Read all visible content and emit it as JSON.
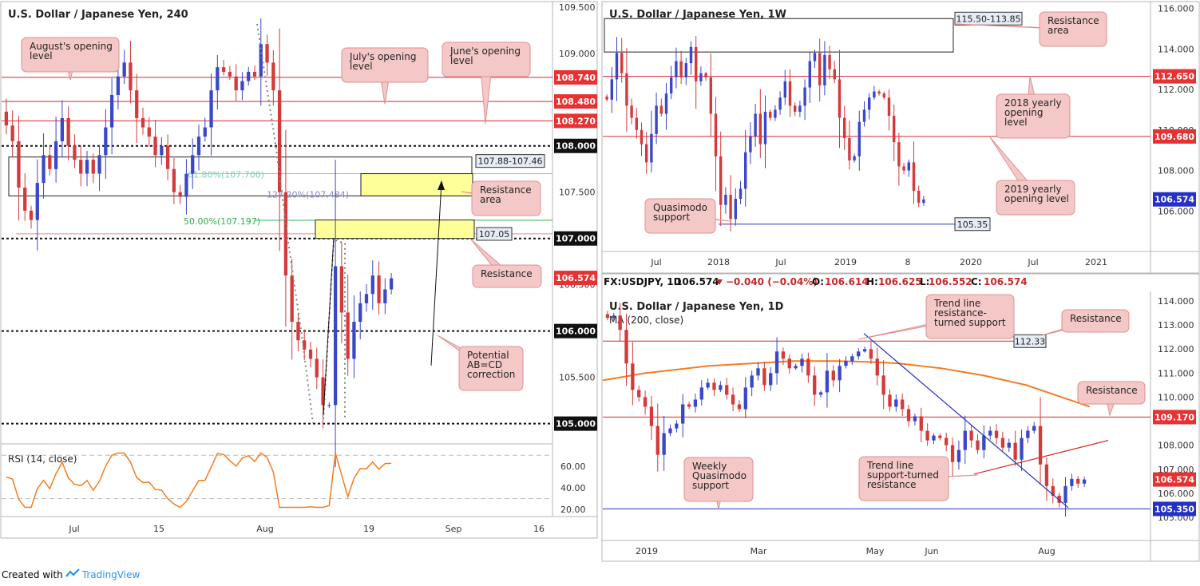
{
  "colors": {
    "bull": "#3a47c8",
    "bear": "#d43a3a",
    "red_line": "#d42a2a",
    "blue_line": "#2430c8",
    "callout_fill": "#f5c8c8",
    "callout_stroke": "#e08f8f",
    "yellow": "#ffff99",
    "orange": "#f57c1f",
    "price_tag": "#e83232"
  },
  "footer": {
    "created_with": "Created with",
    "brand": "TradingView"
  },
  "chart_data": [
    {
      "id": "h4",
      "type": "candlestick",
      "title": "U.S. Dollar / Japanese Yen, 240",
      "ylim": [
        104.85,
        109.55
      ],
      "yticks": [
        "109.500",
        "109.000",
        "108.500",
        "108.000",
        "107.500",
        "107.000",
        "106.500",
        "106.000",
        "105.500",
        "105.000"
      ],
      "xticks": [
        "Jul",
        "15",
        "Aug",
        "19",
        "Sep",
        "16"
      ],
      "price_tags": [
        {
          "label": "108.740",
          "value": 108.74,
          "style": "red"
        },
        {
          "label": "108.480",
          "value": 108.48,
          "style": "red"
        },
        {
          "label": "108.270",
          "value": 108.27,
          "style": "red"
        },
        {
          "label": "108.000",
          "value": 108.0,
          "style": "black"
        },
        {
          "label": "107.000",
          "value": 107.0,
          "style": "black"
        },
        {
          "label": "106.574",
          "value": 106.574,
          "style": "red"
        },
        {
          "label": "106.000",
          "value": 106.0,
          "style": "black"
        },
        {
          "label": "105.000",
          "value": 105.0,
          "style": "black"
        }
      ],
      "levels": [
        {
          "value": 108.74,
          "kind": "red"
        },
        {
          "value": 108.48,
          "kind": "red"
        },
        {
          "value": 108.27,
          "kind": "red"
        },
        {
          "value": 108.0,
          "kind": "dashed"
        },
        {
          "value": 107.0,
          "kind": "dashed"
        },
        {
          "value": 106.0,
          "kind": "dashed"
        },
        {
          "value": 105.0,
          "kind": "dashed"
        }
      ],
      "zone_label": "107.88-107.46",
      "zone_value_tag": "107.05",
      "fib_labels": [
        "61.80%(107.700)",
        "127.20%(107.484)",
        "50.00%(107.197)"
      ],
      "callouts": [
        "August's opening level",
        "July's opening level",
        "June's opening level",
        "Resistance area",
        "Resistance",
        "Potential AB=CD correction"
      ],
      "series_close": [
        108.22,
        108.05,
        107.55,
        107.3,
        107.2,
        107.6,
        107.9,
        107.75,
        108.05,
        108.3,
        108.0,
        107.85,
        107.7,
        107.85,
        107.7,
        107.9,
        108.2,
        108.55,
        108.75,
        108.9,
        108.6,
        108.3,
        108.2,
        108.1,
        107.9,
        108.0,
        107.75,
        107.5,
        107.45,
        107.7,
        107.9,
        108.1,
        108.2,
        108.6,
        108.85,
        108.8,
        108.75,
        108.6,
        108.7,
        108.8,
        108.75,
        109.1,
        108.9,
        108.6,
        107.5,
        106.6,
        106.1,
        105.9,
        105.8,
        105.7,
        105.5,
        105.2,
        105.2,
        106.7,
        106.2,
        105.7,
        106.1,
        106.3,
        106.4,
        106.6,
        106.3,
        106.45,
        106.57
      ],
      "rsi": {
        "label": "RSI (14, close)",
        "yticks": [
          "60.00",
          "40.00",
          "20.00"
        ],
        "ylim": [
          15,
          79
        ]
      }
    },
    {
      "id": "w1",
      "type": "candlestick",
      "title": "U.S. Dollar / Japanese Yen, 1W",
      "ylim": [
        104.0,
        116.3
      ],
      "yticks": [
        "116.000",
        "114.000",
        "112.000",
        "110.000",
        "108.000",
        "106.000"
      ],
      "xticks": [
        "Jul",
        "2018",
        "Jul",
        "2019",
        "8",
        "2020",
        "Jul",
        "2021"
      ],
      "price_tags": [
        {
          "label": "112.650",
          "value": 112.65,
          "style": "red"
        },
        {
          "label": "109.680",
          "value": 109.68,
          "style": "red"
        },
        {
          "label": "106.574",
          "value": 106.574,
          "style": "blue"
        }
      ],
      "zone_label": "115.50-113.85",
      "support_label": "105.35",
      "callouts": [
        "Resistance area",
        "2018 yearly opening level",
        "2019 yearly opening level",
        "Quasimodo support"
      ],
      "series_close": [
        111.5,
        112.5,
        113.8,
        112.8,
        111.2,
        110.6,
        110.0,
        109.3,
        108.4,
        109.8,
        111.2,
        110.8,
        111.8,
        112.6,
        113.4,
        112.6,
        113.3,
        114.1,
        112.4,
        112.8,
        112.6,
        110.8,
        108.7,
        106.3,
        106.8,
        105.6,
        106.6,
        107.1,
        108.9,
        109.7,
        110.8,
        109.3,
        110.9,
        110.6,
        111.0,
        111.6,
        112.4,
        111.2,
        110.9,
        111.2,
        112.1,
        113.4,
        113.8,
        112.2,
        113.7,
        113.0,
        112.5,
        110.6,
        109.6,
        108.5,
        108.7,
        110.4,
        111.0,
        111.6,
        111.9,
        111.8,
        111.6,
        110.7,
        109.4,
        108.2,
        108.0,
        108.4,
        107.0,
        106.4,
        106.574
      ]
    },
    {
      "id": "d1",
      "type": "candlestick",
      "title": "U.S. Dollar / Japanese Yen, 1D",
      "subtitle": "MA (200, close)",
      "header": {
        "symbol": "FX:USDJPY, 1D",
        "last": "106.574",
        "change": "−0.040 (−0.04%)",
        "o_lbl": "O:",
        "o": "106.614",
        "h_lbl": "H:",
        "h": "106.625",
        "l_lbl": "L:",
        "l": "106.552",
        "c_lbl": "C:",
        "c": "106.574"
      },
      "ylim": [
        104.6,
        114.3
      ],
      "yticks": [
        "114.000",
        "113.000",
        "112.000",
        "111.000",
        "110.000",
        "109.000",
        "108.000",
        "107.000",
        "106.000",
        "105.000"
      ],
      "xticks": [
        "2019",
        "Mar",
        "May",
        "Jun",
        "Aug"
      ],
      "price_tags": [
        {
          "label": "109.170",
          "value": 109.17,
          "style": "red"
        },
        {
          "label": "106.574",
          "value": 106.574,
          "style": "red"
        },
        {
          "label": "105.350",
          "value": 105.35,
          "style": "blue"
        }
      ],
      "resistance_label": "112.33",
      "callouts": [
        "Trend line resistance-turned support",
        "Resistance",
        "Resistance",
        "Weekly Quasimodo support",
        "Trend line support-turned resistance"
      ],
      "series_close": [
        113.3,
        113.4,
        112.8,
        111.4,
        110.3,
        110.0,
        109.6,
        108.8,
        107.6,
        108.5,
        108.7,
        108.9,
        109.7,
        109.6,
        109.9,
        110.4,
        110.6,
        110.3,
        110.5,
        110.1,
        109.7,
        109.5,
        110.4,
        110.9,
        111.2,
        110.5,
        111.0,
        111.9,
        111.6,
        111.2,
        111.3,
        111.6,
        110.9,
        110.1,
        110.2,
        111.1,
        110.7,
        111.3,
        111.5,
        111.7,
        111.9,
        112.0,
        111.6,
        110.9,
        110.1,
        109.6,
        109.9,
        109.5,
        109.0,
        109.2,
        108.6,
        108.2,
        108.4,
        108.3,
        108.0,
        107.3,
        107.8,
        108.6,
        108.2,
        107.8,
        108.4,
        108.6,
        108.3,
        107.9,
        108.1,
        107.4,
        108.3,
        108.6,
        108.8,
        107.2,
        106.3,
        105.9,
        105.6,
        106.3,
        106.6,
        106.4,
        106.574
      ],
      "ma_200": {
        "label": "MA (200, close)",
        "values": [
          110.7,
          110.85,
          111.0,
          111.1,
          111.2,
          111.3,
          111.35,
          111.4,
          111.45,
          111.5,
          111.5,
          111.5,
          111.48,
          111.45,
          111.4,
          111.3,
          111.2,
          111.05,
          110.9,
          110.7,
          110.5,
          110.2,
          109.9,
          109.6
        ]
      }
    }
  ]
}
